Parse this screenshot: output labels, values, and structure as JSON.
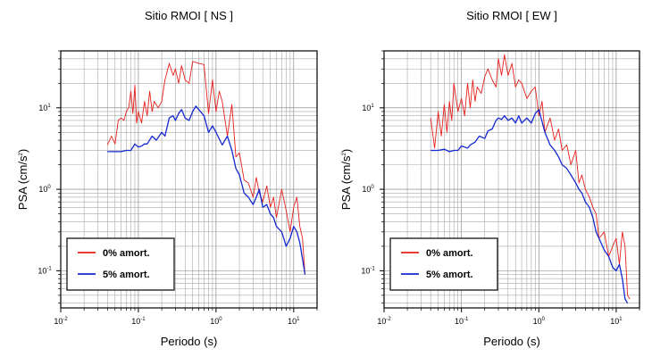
{
  "chart_data": [
    {
      "type": "line",
      "title": "Sitio RMOI [ NS ]",
      "xlabel": "Periodo (s)",
      "ylabel_base": "PSA (cm/s",
      "ylabel_exp": "2",
      "ylabel_close": ")",
      "x_scale": "log",
      "y_scale": "log",
      "xlim": [
        0.01,
        20
      ],
      "ylim": [
        0.035,
        50
      ],
      "grid": true,
      "legend_position": "bottom-left",
      "x_ticks": [
        {
          "base": "10",
          "exp": "-2",
          "value": 0.01
        },
        {
          "base": "10",
          "exp": "-1",
          "value": 0.1
        },
        {
          "base": "10",
          "exp": "0",
          "value": 1
        },
        {
          "base": "10",
          "exp": "1",
          "value": 10
        }
      ],
      "y_ticks": [
        {
          "base": "10",
          "exp": "-1",
          "value": 0.1
        },
        {
          "base": "10",
          "exp": "0",
          "value": 1
        },
        {
          "base": "10",
          "exp": "1",
          "value": 10
        }
      ],
      "series": [
        {
          "name": "0% amort.",
          "color": "#e8201c",
          "x": [
            0.04,
            0.045,
            0.05,
            0.055,
            0.06,
            0.065,
            0.07,
            0.075,
            0.08,
            0.085,
            0.09,
            0.095,
            0.1,
            0.11,
            0.12,
            0.13,
            0.14,
            0.15,
            0.16,
            0.18,
            0.2,
            0.22,
            0.25,
            0.28,
            0.3,
            0.33,
            0.36,
            0.4,
            0.45,
            0.5,
            0.55,
            0.6,
            0.7,
            0.8,
            0.9,
            1.0,
            1.1,
            1.2,
            1.4,
            1.6,
            1.8,
            2.0,
            2.3,
            2.6,
            3.0,
            3.3,
            3.6,
            4.0,
            4.5,
            5.0,
            5.5,
            6.0,
            7.0,
            8.0,
            9.0,
            10,
            11,
            12,
            13,
            14
          ],
          "y": [
            3.5,
            4.5,
            3.6,
            7.0,
            7.5,
            7.0,
            9.0,
            10,
            16,
            8.5,
            19,
            6.5,
            9.0,
            6.5,
            12,
            8.0,
            16,
            9.0,
            12,
            10,
            12,
            22,
            35,
            25,
            30,
            20,
            33,
            22,
            20,
            37,
            36,
            35,
            34,
            8.5,
            22,
            9.0,
            16,
            12,
            4.5,
            11,
            2.5,
            2.8,
            1.3,
            1.2,
            0.8,
            1.4,
            0.9,
            0.7,
            1.1,
            0.6,
            0.8,
            0.45,
            1.0,
            0.55,
            0.3,
            0.6,
            0.8,
            0.35,
            0.25,
            0.09
          ]
        },
        {
          "name": "5% amort.",
          "color": "#1428d2",
          "x": [
            0.04,
            0.05,
            0.06,
            0.07,
            0.08,
            0.09,
            0.1,
            0.11,
            0.12,
            0.13,
            0.15,
            0.17,
            0.2,
            0.22,
            0.25,
            0.28,
            0.3,
            0.33,
            0.36,
            0.4,
            0.45,
            0.5,
            0.55,
            0.6,
            0.7,
            0.8,
            0.9,
            1.0,
            1.2,
            1.4,
            1.6,
            1.8,
            2.0,
            2.3,
            2.6,
            3.0,
            3.3,
            3.6,
            4.0,
            4.5,
            5.0,
            5.5,
            6.0,
            7.0,
            8.0,
            9.0,
            10,
            11,
            12,
            13,
            14
          ],
          "y": [
            2.9,
            2.9,
            2.9,
            3.0,
            3.0,
            3.6,
            3.3,
            3.4,
            3.6,
            3.6,
            4.5,
            4.0,
            5.0,
            4.5,
            7.5,
            8.0,
            7.0,
            8.5,
            9.5,
            7.5,
            7.0,
            9.0,
            10.5,
            9.5,
            8.0,
            5.0,
            6.0,
            5.0,
            3.5,
            4.5,
            3.0,
            1.8,
            1.5,
            0.9,
            0.8,
            0.65,
            0.8,
            1.0,
            0.6,
            0.65,
            0.5,
            0.45,
            0.35,
            0.3,
            0.2,
            0.25,
            0.35,
            0.3,
            0.22,
            0.14,
            0.09
          ]
        }
      ]
    },
    {
      "type": "line",
      "title": "Sitio RMOI [ EW ]",
      "xlabel": "Periodo (s)",
      "ylabel_base": "PSA (cm/s",
      "ylabel_exp": "2",
      "ylabel_close": ")",
      "x_scale": "log",
      "y_scale": "log",
      "xlim": [
        0.01,
        20
      ],
      "ylim": [
        0.035,
        50
      ],
      "grid": true,
      "legend_position": "bottom-left",
      "x_ticks": [
        {
          "base": "10",
          "exp": "-2",
          "value": 0.01
        },
        {
          "base": "10",
          "exp": "-1",
          "value": 0.1
        },
        {
          "base": "10",
          "exp": "0",
          "value": 1
        },
        {
          "base": "10",
          "exp": "1",
          "value": 10
        }
      ],
      "y_ticks": [
        {
          "base": "10",
          "exp": "-1",
          "value": 0.1
        },
        {
          "base": "10",
          "exp": "0",
          "value": 1
        },
        {
          "base": "10",
          "exp": "1",
          "value": 10
        }
      ],
      "series": [
        {
          "name": "0% amort.",
          "color": "#e8201c",
          "x": [
            0.04,
            0.045,
            0.05,
            0.055,
            0.06,
            0.065,
            0.07,
            0.075,
            0.08,
            0.09,
            0.1,
            0.11,
            0.12,
            0.13,
            0.14,
            0.15,
            0.16,
            0.18,
            0.2,
            0.22,
            0.25,
            0.28,
            0.3,
            0.33,
            0.36,
            0.4,
            0.45,
            0.5,
            0.55,
            0.6,
            0.7,
            0.8,
            0.9,
            1.0,
            1.1,
            1.2,
            1.4,
            1.6,
            1.8,
            2.0,
            2.3,
            2.6,
            3.0,
            3.3,
            3.6,
            4.0,
            4.5,
            5.0,
            5.5,
            6.0,
            7.0,
            8.0,
            9.0,
            10,
            11,
            12,
            13,
            14,
            15
          ],
          "y": [
            7.5,
            3.2,
            9.0,
            4.5,
            11,
            5.0,
            12,
            7.0,
            20,
            9.0,
            13,
            8.0,
            20,
            10,
            22,
            12,
            18,
            15,
            24,
            30,
            22,
            18,
            40,
            25,
            45,
            25,
            35,
            18,
            22,
            20,
            13,
            16,
            18,
            8.0,
            12,
            5.0,
            7.5,
            4.0,
            5.5,
            3.0,
            3.5,
            2.0,
            3.0,
            1.2,
            1.5,
            1.0,
            0.8,
            0.6,
            0.5,
            0.25,
            0.3,
            0.15,
            0.2,
            0.25,
            0.12,
            0.3,
            0.2,
            0.05,
            0.045
          ]
        },
        {
          "name": "5% amort.",
          "color": "#1428d2",
          "x": [
            0.04,
            0.05,
            0.06,
            0.07,
            0.08,
            0.09,
            0.1,
            0.11,
            0.12,
            0.13,
            0.15,
            0.17,
            0.2,
            0.22,
            0.25,
            0.28,
            0.3,
            0.33,
            0.36,
            0.4,
            0.45,
            0.5,
            0.55,
            0.6,
            0.7,
            0.8,
            0.9,
            1.0,
            1.2,
            1.4,
            1.6,
            1.8,
            2.0,
            2.3,
            2.6,
            3.0,
            3.3,
            3.6,
            4.0,
            4.5,
            5.0,
            5.5,
            6.0,
            7.0,
            8.0,
            9.0,
            10,
            11,
            12,
            13,
            14
          ],
          "y": [
            3.0,
            3.0,
            3.1,
            2.9,
            3.0,
            3.0,
            3.4,
            3.3,
            3.2,
            3.5,
            3.8,
            4.5,
            4.2,
            5.2,
            5.5,
            7.0,
            7.5,
            7.2,
            8.0,
            7.0,
            7.5,
            6.5,
            8.0,
            6.5,
            7.5,
            6.5,
            8.5,
            9.5,
            5.0,
            3.5,
            3.0,
            2.5,
            2.0,
            1.8,
            1.5,
            1.2,
            1.0,
            0.9,
            0.7,
            0.6,
            0.45,
            0.3,
            0.25,
            0.18,
            0.15,
            0.11,
            0.1,
            0.12,
            0.08,
            0.045,
            0.04
          ]
        }
      ]
    }
  ]
}
